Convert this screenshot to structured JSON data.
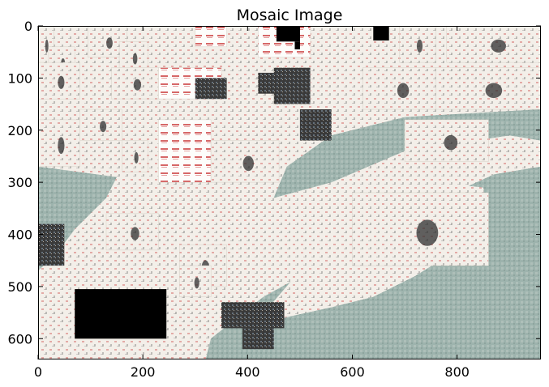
{
  "chart_data": {
    "type": "image",
    "title": "Mosaic Image",
    "xlabel": "",
    "ylabel": "",
    "xlim": [
      0,
      960
    ],
    "ylim": [
      640,
      0
    ],
    "x_ticks": [
      0,
      200,
      400,
      600,
      800
    ],
    "y_ticks": [
      0,
      100,
      200,
      300,
      400,
      500,
      600
    ],
    "y_inverted": true,
    "grid": false,
    "colors": {
      "background_tile": "#9db3ad",
      "light_tile": "#f3efe9",
      "white_tile": "#fdfdfb",
      "dark_tile": "#3a3a3a",
      "brand_red": "#c62828",
      "black_region": "#000000",
      "tile_pattern": "#b9c7c2"
    },
    "black_regions": [
      {
        "x": [
          70,
          245
        ],
        "y": [
          505,
          600
        ]
      },
      {
        "x": [
          455,
          500
        ],
        "y": [
          0,
          30
        ]
      },
      {
        "x": [
          640,
          670
        ],
        "y": [
          0,
          28
        ]
      },
      {
        "x": [
          490,
          500
        ],
        "y": [
          30,
          45
        ]
      }
    ],
    "light_regions": [
      {
        "points": [
          [
            0,
            0
          ],
          [
            960,
            0
          ],
          [
            960,
            160
          ],
          [
            700,
            175
          ],
          [
            560,
            210
          ],
          [
            475,
            270
          ],
          [
            450,
            330
          ],
          [
            560,
            300
          ],
          [
            700,
            240
          ],
          [
            900,
            210
          ],
          [
            960,
            220
          ],
          [
            960,
            270
          ],
          [
            870,
            285
          ],
          [
            750,
            340
          ],
          [
            620,
            400
          ],
          [
            520,
            470
          ],
          [
            430,
            520
          ],
          [
            380,
            560
          ],
          [
            330,
            600
          ],
          [
            320,
            640
          ],
          [
            0,
            640
          ],
          [
            0,
            470
          ],
          [
            40,
            430
          ],
          [
            70,
            390
          ],
          [
            100,
            360
          ],
          [
            130,
            330
          ],
          [
            150,
            290
          ],
          [
            0,
            270
          ]
        ]
      },
      {
        "points": [
          [
            520,
            320
          ],
          [
            640,
            300
          ],
          [
            760,
            300
          ],
          [
            850,
            310
          ],
          [
            860,
            360
          ],
          [
            800,
            430
          ],
          [
            720,
            480
          ],
          [
            640,
            520
          ],
          [
            560,
            540
          ],
          [
            470,
            560
          ],
          [
            440,
            540
          ],
          [
            500,
            470
          ],
          [
            560,
            420
          ],
          [
            540,
            380
          ]
        ]
      }
    ],
    "background_regions": [
      {
        "points": [
          [
            0,
            270
          ],
          [
            150,
            290
          ],
          [
            130,
            330
          ],
          [
            100,
            360
          ],
          [
            70,
            390
          ],
          [
            40,
            430
          ],
          [
            0,
            470
          ]
        ]
      },
      {
        "points": [
          [
            330,
            600
          ],
          [
            380,
            560
          ],
          [
            430,
            520
          ],
          [
            470,
            560
          ],
          [
            560,
            540
          ],
          [
            640,
            520
          ],
          [
            720,
            480
          ],
          [
            800,
            430
          ],
          [
            860,
            360
          ],
          [
            850,
            310
          ],
          [
            870,
            285
          ],
          [
            960,
            270
          ],
          [
            960,
            640
          ],
          [
            320,
            640
          ]
        ]
      },
      {
        "points": [
          [
            450,
            330
          ],
          [
            475,
            270
          ],
          [
            560,
            210
          ],
          [
            700,
            175
          ],
          [
            960,
            160
          ],
          [
            960,
            220
          ],
          [
            900,
            210
          ],
          [
            700,
            240
          ],
          [
            560,
            300
          ]
        ]
      }
    ],
    "photo_tiles": [
      {
        "x": [
          0,
          30
        ],
        "y": [
          0,
          70
        ],
        "tone": "light"
      },
      {
        "x": [
          20,
          70
        ],
        "y": [
          40,
          100
        ],
        "tone": "light"
      },
      {
        "x": [
          95,
          170
        ],
        "y": [
          0,
          60
        ],
        "tone": "light"
      },
      {
        "x": [
          155,
          210
        ],
        "y": [
          30,
          90
        ],
        "tone": "light"
      },
      {
        "x": [
          300,
          360
        ],
        "y": [
          0,
          40
        ],
        "tone": "white"
      },
      {
        "x": [
          420,
          520
        ],
        "y": [
          0,
          60
        ],
        "tone": "white"
      },
      {
        "x": [
          690,
          760
        ],
        "y": [
          0,
          70
        ],
        "tone": "light"
      },
      {
        "x": [
          780,
          960
        ],
        "y": [
          0,
          70
        ],
        "tone": "light"
      },
      {
        "x": [
          0,
          80
        ],
        "y": [
          70,
          140
        ],
        "tone": "light"
      },
      {
        "x": [
          140,
          230
        ],
        "y": [
          80,
          140
        ],
        "tone": "light"
      },
      {
        "x": [
          230,
          350
        ],
        "y": [
          80,
          140
        ],
        "tone": "white"
      },
      {
        "x": [
          450,
          520
        ],
        "y": [
          80,
          150
        ],
        "tone": "dark"
      },
      {
        "x": [
          620,
          760
        ],
        "y": [
          80,
          160
        ],
        "tone": "light"
      },
      {
        "x": [
          760,
          960
        ],
        "y": [
          80,
          160
        ],
        "tone": "light"
      },
      {
        "x": [
          0,
          80
        ],
        "y": [
          180,
          270
        ],
        "tone": "light"
      },
      {
        "x": [
          80,
          160
        ],
        "y": [
          160,
          220
        ],
        "tone": "light"
      },
      {
        "x": [
          160,
          210
        ],
        "y": [
          220,
          280
        ],
        "tone": "light"
      },
      {
        "x": [
          230,
          330
        ],
        "y": [
          180,
          300
        ],
        "tone": "white"
      },
      {
        "x": [
          330,
          460
        ],
        "y": [
          220,
          300
        ],
        "tone": "light"
      },
      {
        "x": [
          700,
          860
        ],
        "y": [
          180,
          260
        ],
        "tone": "light"
      },
      {
        "x": [
          130,
          230
        ],
        "y": [
          360,
          430
        ],
        "tone": "light"
      },
      {
        "x": [
          270,
          360
        ],
        "y": [
          420,
          500
        ],
        "tone": "light"
      },
      {
        "x": [
          600,
          860
        ],
        "y": [
          320,
          460
        ],
        "tone": "light"
      },
      {
        "x": [
          150,
          230
        ],
        "y": [
          520,
          580
        ],
        "tone": "light"
      },
      {
        "x": [
          270,
          330
        ],
        "y": [
          460,
          520
        ],
        "tone": "light"
      }
    ],
    "dark_tiles": [
      {
        "x": [
          0,
          50
        ],
        "y": [
          380,
          460
        ]
      },
      {
        "x": [
          300,
          360
        ],
        "y": [
          100,
          140
        ]
      },
      {
        "x": [
          500,
          560
        ],
        "y": [
          160,
          220
        ]
      },
      {
        "x": [
          350,
          470
        ],
        "y": [
          530,
          580
        ]
      },
      {
        "x": [
          390,
          450
        ],
        "y": [
          580,
          620
        ]
      },
      {
        "x": [
          420,
          460
        ],
        "y": [
          90,
          130
        ]
      }
    ]
  }
}
